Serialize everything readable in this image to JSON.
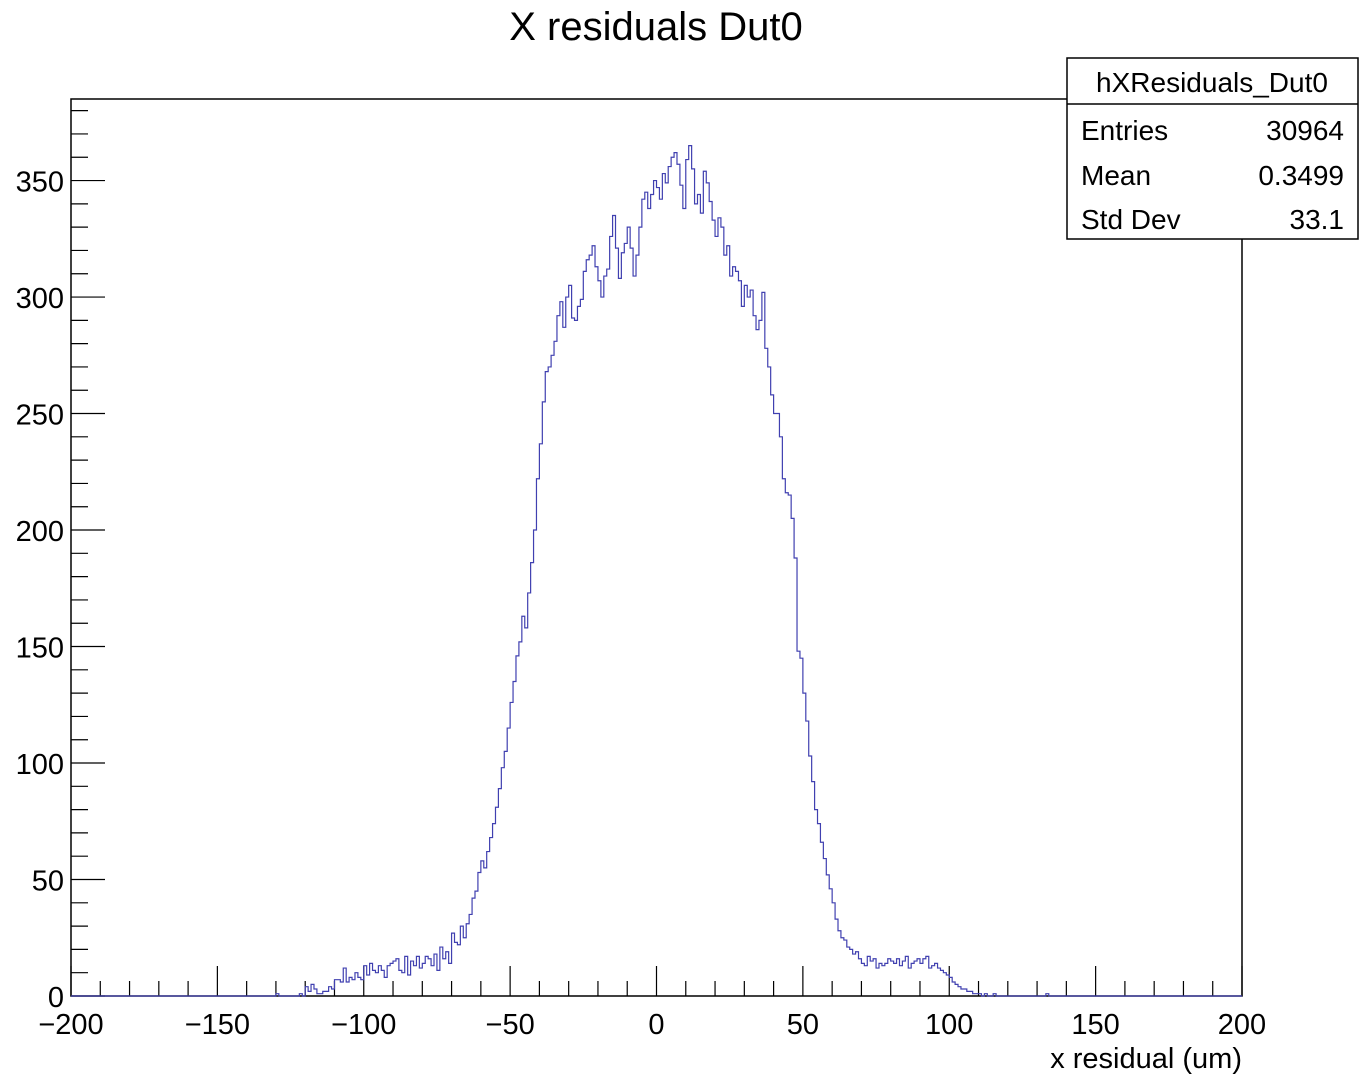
{
  "chart_data": {
    "type": "histogram",
    "title": "X residuals  Dut0",
    "xlabel": "x residual (um)",
    "ylabel": "",
    "xlim": [
      -200,
      200
    ],
    "ylim": [
      0,
      385
    ],
    "x_ticks": [
      -200,
      -150,
      -100,
      -50,
      0,
      50,
      100,
      150,
      200
    ],
    "x_tick_labels": [
      "−200",
      "−150",
      "−100",
      "−50",
      "0",
      "50",
      "100",
      "150",
      "200"
    ],
    "y_ticks": [
      0,
      50,
      100,
      150,
      200,
      250,
      300,
      350
    ],
    "y_tick_labels": [
      "0",
      "50",
      "100",
      "150",
      "200",
      "250",
      "300",
      "350"
    ],
    "grid": false,
    "line_color": "#4040b0",
    "bin_width": 1,
    "bin_start": -130,
    "values": [
      1,
      0,
      0,
      0,
      0,
      0,
      0,
      0,
      1,
      0,
      4,
      2,
      5,
      3,
      1,
      1,
      2,
      2,
      4,
      3,
      7,
      7,
      6,
      12,
      6,
      8,
      7,
      10,
      8,
      7,
      13,
      9,
      14,
      11,
      10,
      13,
      11,
      8,
      13,
      14,
      15,
      16,
      11,
      10,
      17,
      9,
      15,
      13,
      17,
      12,
      14,
      17,
      16,
      13,
      18,
      11,
      21,
      16,
      19,
      14,
      27,
      23,
      22,
      30,
      25,
      31,
      35,
      42,
      45,
      53,
      58,
      55,
      62,
      68,
      74,
      81,
      89,
      98,
      105,
      115,
      126,
      135,
      146,
      152,
      163,
      158,
      173,
      186,
      200,
      222,
      237,
      255,
      268,
      270,
      275,
      281,
      292,
      298,
      287,
      300,
      305,
      291,
      290,
      296,
      299,
      311,
      316,
      318,
      322,
      313,
      307,
      300,
      309,
      312,
      326,
      335,
      321,
      308,
      319,
      323,
      330,
      321,
      309,
      318,
      330,
      342,
      345,
      338,
      344,
      350,
      347,
      342,
      353,
      349,
      356,
      360,
      362,
      357,
      348,
      338,
      359,
      365,
      355,
      340,
      344,
      336,
      354,
      349,
      341,
      333,
      326,
      334,
      330,
      318,
      322,
      309,
      313,
      311,
      307,
      296,
      305,
      300,
      303,
      292,
      286,
      290,
      302,
      278,
      270,
      258,
      250,
      250,
      240,
      222,
      216,
      215,
      205,
      188,
      148,
      145,
      130,
      118,
      103,
      92,
      80,
      74,
      66,
      59,
      52,
      46,
      40,
      33,
      28,
      25,
      24,
      21,
      20,
      18,
      19,
      16,
      14,
      13,
      17,
      15,
      16,
      12,
      14,
      13,
      14,
      16,
      15,
      14,
      16,
      13,
      15,
      17,
      12,
      14,
      15,
      16,
      14,
      16,
      17,
      12,
      13,
      14,
      12,
      11,
      10,
      9,
      8,
      6,
      5,
      4,
      3,
      3,
      2,
      2,
      1,
      1,
      1,
      0,
      1,
      0,
      0,
      1,
      0,
      0,
      0,
      0,
      0,
      0,
      0,
      0,
      0,
      0,
      0,
      0,
      0,
      0,
      0,
      0,
      0,
      1,
      0,
      0,
      0,
      0,
      0,
      0
    ]
  },
  "stats_box": {
    "name": "hXResiduals_Dut0",
    "rows": [
      {
        "label": "Entries",
        "value": "30964"
      },
      {
        "label": "Mean",
        "value": "0.3499"
      },
      {
        "label": "Std Dev",
        "value": "33.1"
      }
    ]
  }
}
